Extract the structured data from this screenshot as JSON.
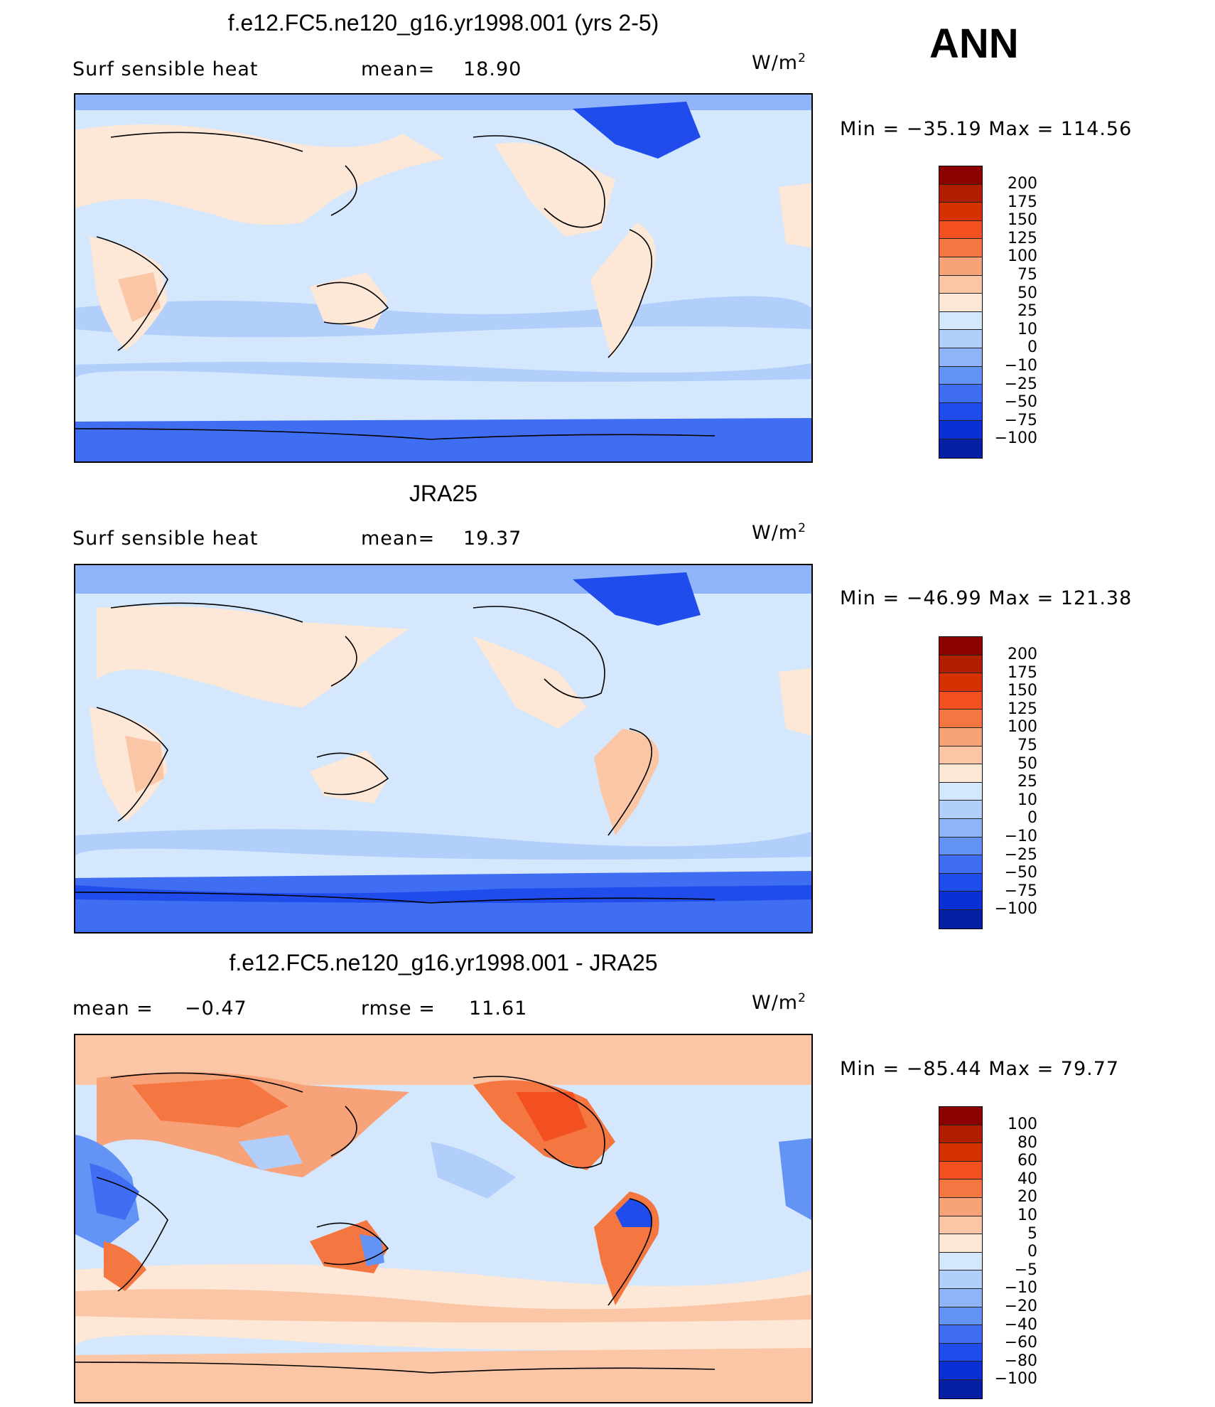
{
  "season": "ANN",
  "units_base": "W/m",
  "units_sup": "2",
  "panels": [
    {
      "title": "f.e12.FC5.ne120_g16.yr1998.001 (yrs 2-5)",
      "left_label": "Surf  sensible  heat",
      "stat_label": "mean=",
      "stat_value": "18.90",
      "minmax": "Min  =  −35.19  Max  =  114.56",
      "colorbar_labels": [
        "200",
        "175",
        "150",
        "125",
        "100",
        "75",
        "50",
        "25",
        "10",
        "0",
        "−10",
        "−25",
        "−50",
        "−75",
        "−100"
      ]
    },
    {
      "title": "JRA25",
      "left_label": "Surf  sensible  heat",
      "stat_label": "mean=",
      "stat_value": "19.37",
      "minmax": "Min  =  −46.99  Max  =  121.38",
      "colorbar_labels": [
        "200",
        "175",
        "150",
        "125",
        "100",
        "75",
        "50",
        "25",
        "10",
        "0",
        "−10",
        "−25",
        "−50",
        "−75",
        "−100"
      ]
    },
    {
      "title": "f.e12.FC5.ne120_g16.yr1998.001 - JRA25",
      "left_label": "mean  =",
      "left_value": "−0.47",
      "stat_label": "rmse  =",
      "stat_value": "11.61",
      "minmax": "Min  =  −85.44  Max  =   79.77",
      "colorbar_labels": [
        "100",
        "80",
        "60",
        "40",
        "20",
        "10",
        "5",
        "0",
        "−5",
        "−10",
        "−20",
        "−40",
        "−60",
        "−80",
        "−100"
      ]
    }
  ],
  "colorbar_colors": [
    "#8b0000",
    "#b01e00",
    "#d63200",
    "#f25020",
    "#f47640",
    "#f8a27a",
    "#fbc6a6",
    "#fde7d6",
    "#d4e7fc",
    "#b2cffb",
    "#8fb4f9",
    "#6493f6",
    "#3f6ef3",
    "#1f4ceb",
    "#0a2fd4",
    "#061fa5",
    "#020d70"
  ],
  "colors": {
    "ocean_light": "#d4e7fc",
    "ocean_mid": "#b2cffb",
    "ocean_blue": "#8fb4f9",
    "ice_blue": "#3f6ef3",
    "land_warm": "#fde7d6",
    "land_warmer": "#fbc6a6",
    "diff_warm": "#f47640",
    "diff_blue": "#1f4ceb"
  }
}
